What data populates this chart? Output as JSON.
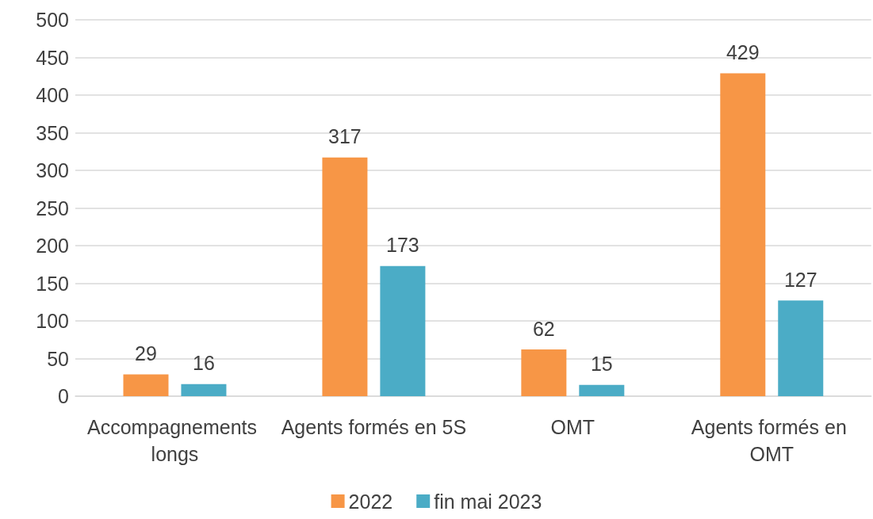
{
  "chart_data": {
    "type": "bar",
    "categories": [
      "Accompagnements longs",
      "Agents formés en 5S",
      "OMT",
      "Agents formés en OMT"
    ],
    "series": [
      {
        "name": "2022",
        "color": "#f79646",
        "values": [
          29,
          317,
          62,
          429
        ]
      },
      {
        "name": "fin mai 2023",
        "color": "#4bacc6",
        "values": [
          16,
          173,
          15,
          127
        ]
      }
    ],
    "ylim": [
      0,
      500
    ],
    "yticks": [
      0,
      50,
      100,
      150,
      200,
      250,
      300,
      350,
      400,
      450,
      500
    ],
    "grid": "y",
    "legend": "bottom",
    "data_labels": true
  }
}
